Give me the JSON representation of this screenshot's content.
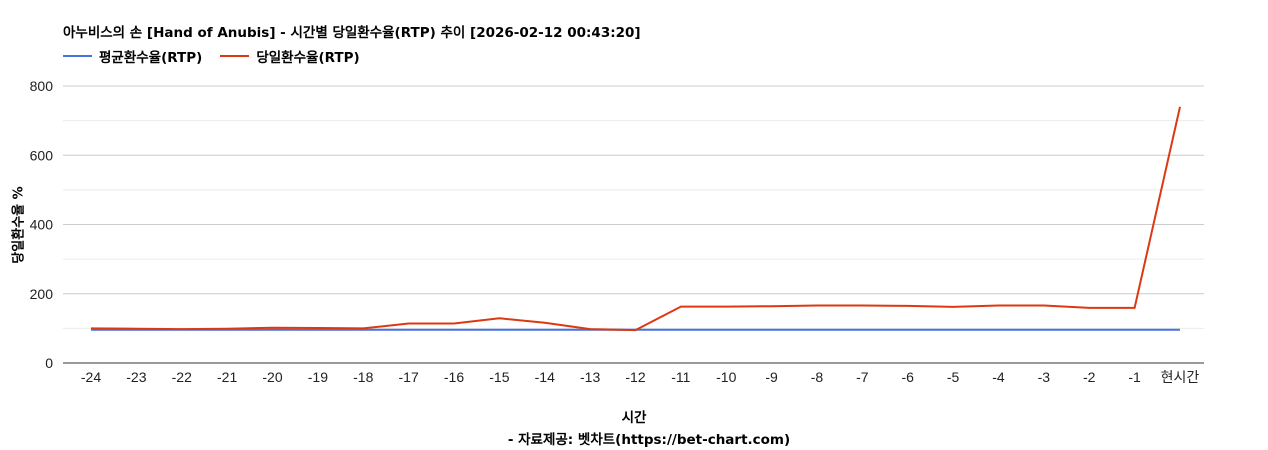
{
  "header": {
    "title": "아누비스의 손 [Hand of Anubis] - 시간별 당일환수율(RTP) 추이 [2026-02-12 00:43:20]"
  },
  "legend": [
    {
      "label": "평균환수율(RTP)",
      "color": "#4472e0"
    },
    {
      "label": "당일환수율(RTP)",
      "color": "#dc3912"
    }
  ],
  "axes": {
    "ylabel": "당일환수율 %",
    "xlabel": "시간",
    "credit": "- 자료제공: 벳차트(https://bet-chart.com)"
  },
  "chart_data": {
    "type": "line",
    "title": "아누비스의 손 [Hand of Anubis] - 시간별 당일환수율(RTP) 추이 [2026-02-12 00:43:20]",
    "xlabel": "시간",
    "ylabel": "당일환수율 %",
    "categories": [
      "-24",
      "-23",
      "-22",
      "-21",
      "-20",
      "-19",
      "-18",
      "-17",
      "-16",
      "-15",
      "-14",
      "-13",
      "-12",
      "-11",
      "-10",
      "-9",
      "-8",
      "-7",
      "-6",
      "-5",
      "-4",
      "-3",
      "-2",
      "-1",
      "현시간"
    ],
    "series": [
      {
        "name": "평균환수율(RTP)",
        "color": "#4472e0",
        "values": [
          96,
          96,
          96,
          96,
          96,
          96,
          96,
          96,
          96,
          96,
          96,
          96,
          96,
          96,
          96,
          96,
          96,
          96,
          96,
          96,
          96,
          96,
          96,
          96,
          96
        ]
      },
      {
        "name": "당일환수율(RTP)",
        "color": "#dc3912",
        "values": [
          100,
          99,
          98,
          99,
          102,
          101,
          100,
          114,
          114,
          129,
          116,
          98,
          95,
          163,
          163,
          164,
          166,
          166,
          165,
          162,
          166,
          166,
          159,
          159,
          740
        ]
      }
    ],
    "ylim": [
      0,
      800
    ],
    "yticks": [
      0,
      200,
      400,
      600,
      800
    ],
    "minor_gridlines": [
      100,
      300,
      500,
      700
    ],
    "grid": true,
    "legend_position": "top"
  }
}
